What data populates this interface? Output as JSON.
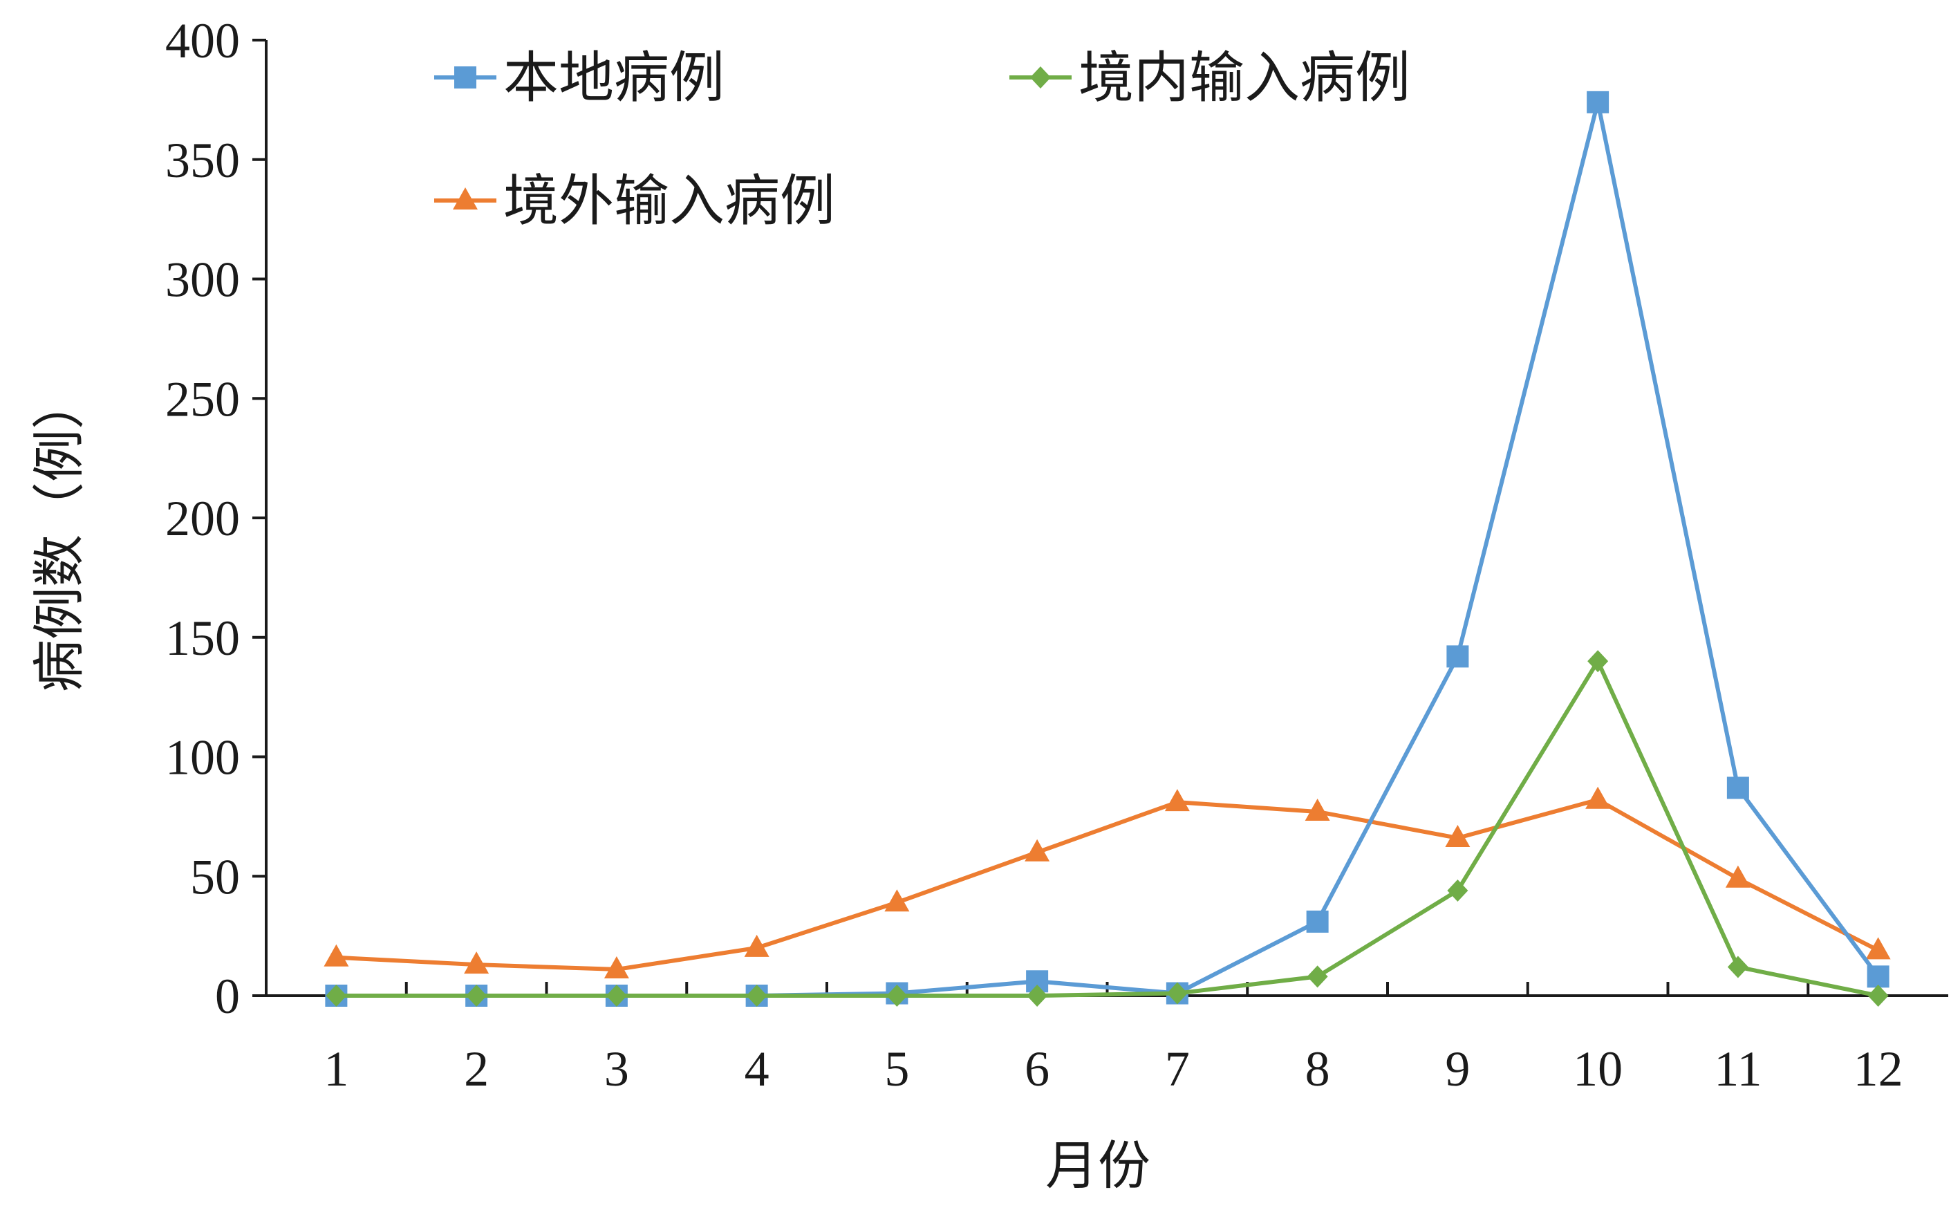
{
  "chart_data": {
    "type": "line",
    "title": "",
    "xlabel": "月份",
    "ylabel": "病例数（例）",
    "categories": [
      "1",
      "2",
      "3",
      "4",
      "5",
      "6",
      "7",
      "8",
      "9",
      "10",
      "11",
      "12"
    ],
    "ylim": [
      0,
      400
    ],
    "yticks": [
      "0",
      "50",
      "100",
      "150",
      "200",
      "250",
      "300",
      "350",
      "400"
    ],
    "grid": false,
    "legend_position": "top",
    "series": [
      {
        "name": "本地病例",
        "color": "#5B9BD5",
        "marker": "square",
        "values": [
          0,
          0,
          0,
          0,
          1,
          6,
          1,
          31,
          142,
          374,
          87,
          8
        ]
      },
      {
        "name": "境内输入病例",
        "color": "#70AD47",
        "marker": "diamond",
        "values": [
          0,
          0,
          0,
          0,
          0,
          0,
          1,
          8,
          44,
          140,
          12,
          0
        ]
      },
      {
        "name": "境外输入病例",
        "color": "#ED7D31",
        "marker": "triangle",
        "values": [
          16,
          13,
          11,
          20,
          39,
          60,
          81,
          77,
          66,
          82,
          49,
          19
        ]
      }
    ]
  }
}
